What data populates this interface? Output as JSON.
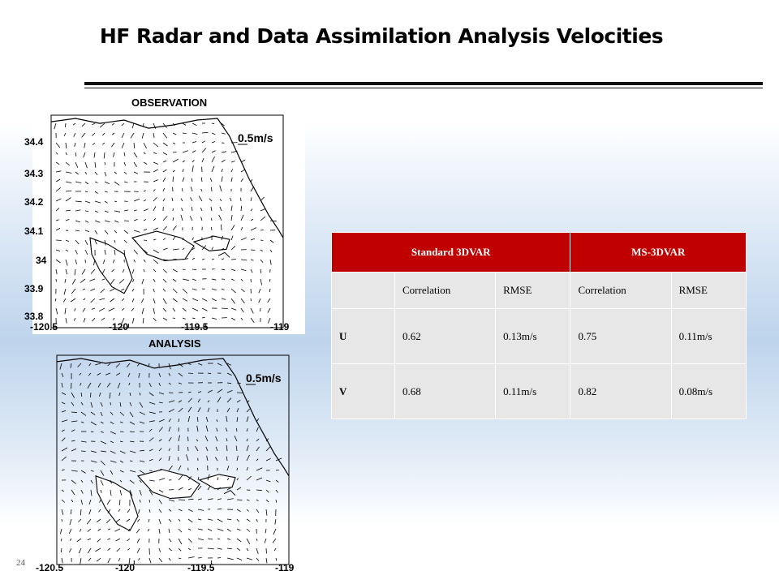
{
  "slide": {
    "title": "HF Radar and Data Assimilation Analysis Velocities",
    "page_number": "24"
  },
  "observation_plot": {
    "title": "OBSERVATION",
    "scale_label": "0.5m/s",
    "y_ticks": [
      "34.4",
      "34.3",
      "34.2",
      "34.1",
      "34",
      "33.9",
      "33.8"
    ],
    "x_ticks": [
      "-120.5",
      "-120",
      "-119.5",
      "-119"
    ]
  },
  "analysis_plot": {
    "title": "ANALYSIS",
    "scale_label": "0.5m/s",
    "x_ticks": [
      "-120.5",
      "-120",
      "-119.5",
      "-119"
    ]
  },
  "stats_table": {
    "group_headers": [
      "Standard 3DVAR",
      "MS-3DVAR"
    ],
    "sub_headers": [
      "",
      "Correlation",
      "RMSE",
      "Correlation",
      "RMSE"
    ],
    "rows": [
      [
        "U",
        "0.62",
        "0.13m/s",
        "0.75",
        "0.11m/s"
      ],
      [
        "V",
        "0.68",
        "0.11m/s",
        "0.82",
        "0.08m/s"
      ]
    ]
  }
}
